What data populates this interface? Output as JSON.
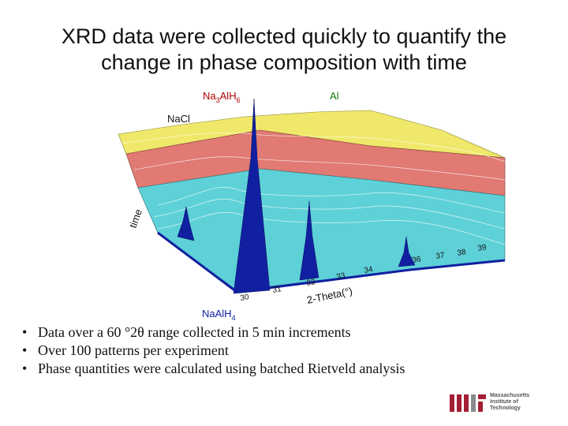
{
  "title": [
    "XRD data were collected quickly to quantify the",
    "change in phase composition with time"
  ],
  "figure": {
    "na3alh6": [
      "Na",
      "3",
      "AlH",
      "6"
    ],
    "al": "Al",
    "nacl": "NaCl",
    "time_label": "time",
    "theta_label": "2-Theta(°)",
    "naalh4": [
      "NaAlH",
      "4"
    ],
    "ticks": [
      30,
      31,
      32,
      33,
      34,
      36,
      37,
      38,
      39
    ]
  },
  "bullets": [
    "Data over a 60 °2θ range collected in 5 min increments",
    "Over 100 patterns per experiment",
    "Phase quantities were calculated using batched Rietveld analysis"
  ],
  "logo": [
    "Massachusetts",
    "Institute of",
    "Technology"
  ]
}
